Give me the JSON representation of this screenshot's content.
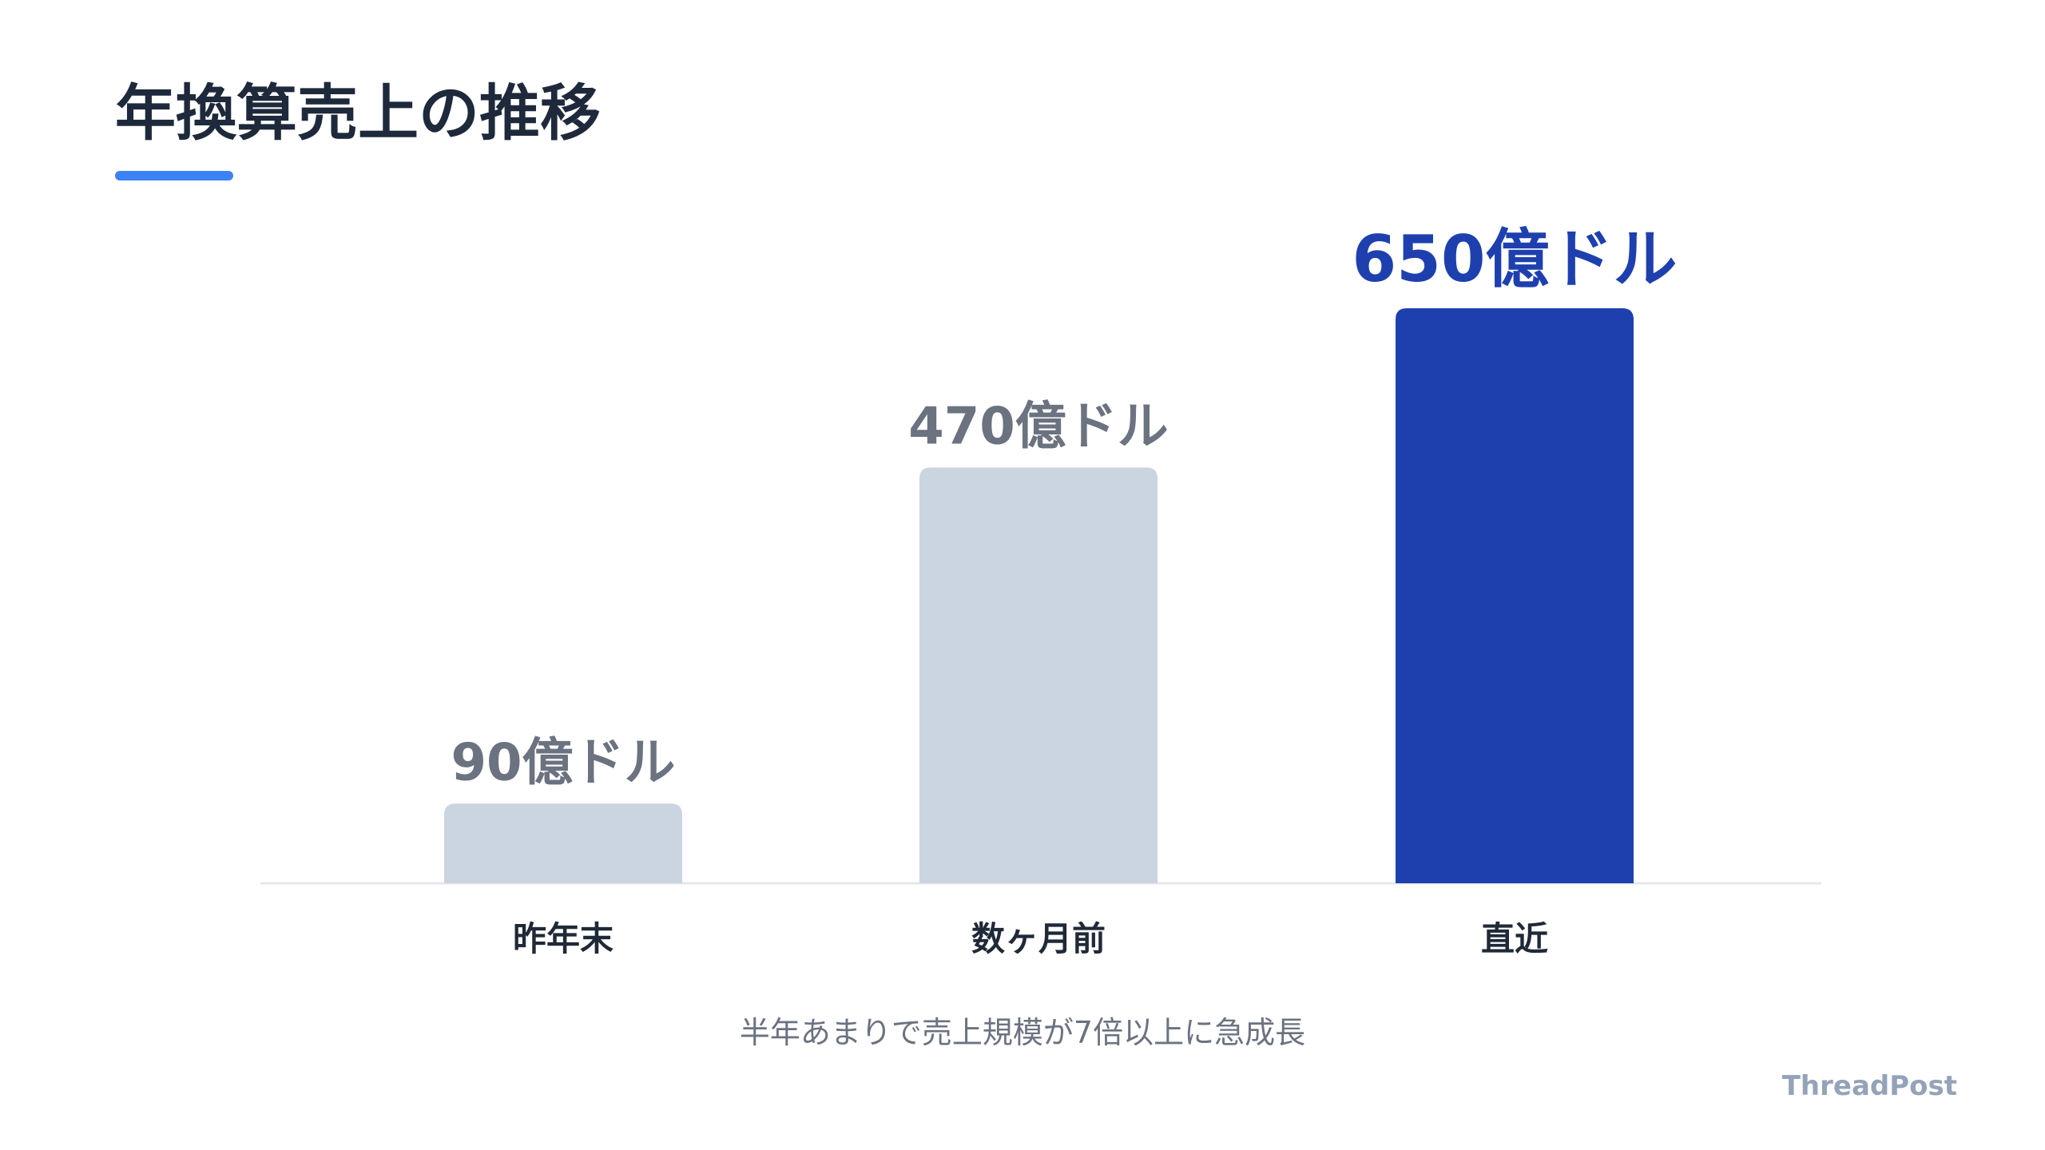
{
  "title": "年換算売上の推移",
  "caption": "半年あまりで売上規模が7倍以上に急成長",
  "brand": "ThreadPost",
  "colors": {
    "title": "#1e293b",
    "accent_underline": "#3b82f6",
    "bar_muted": "#cbd5e1",
    "bar_highlight": "#1e40af",
    "label_muted": "#6b7280",
    "label_highlight": "#1e40af",
    "axis_line": "#e5e7eb",
    "category_text": "#1f2937"
  },
  "chart_data": {
    "type": "bar",
    "title": "年換算売上の推移",
    "xlabel": "",
    "ylabel": "",
    "unit": "億ドル",
    "categories": [
      "昨年末",
      "数ヶ月前",
      "直近"
    ],
    "values": [
      90,
      470,
      650
    ],
    "data_labels": [
      "90億ドル",
      "470億ドル",
      "650億ドル"
    ],
    "highlight_index": 2,
    "ylim": [
      0,
      650
    ],
    "grid": false,
    "legend": "none"
  }
}
